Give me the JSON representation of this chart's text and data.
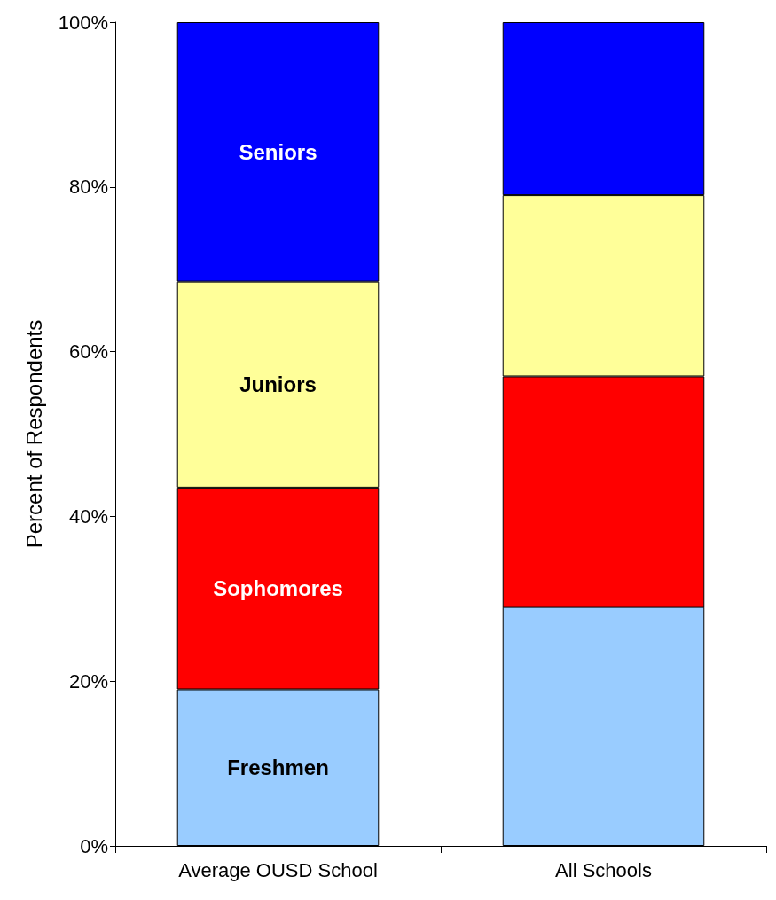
{
  "chart_data": {
    "type": "bar",
    "stacked": true,
    "ylabel": "Percent of Respondents",
    "categories": [
      "Average OUSD School",
      "All Schools"
    ],
    "series": [
      {
        "name": "Freshmen",
        "color": "#99ccff",
        "values": [
          19,
          29
        ]
      },
      {
        "name": "Sophomores",
        "color": "#ff0000",
        "values": [
          24.5,
          28
        ]
      },
      {
        "name": "Juniors",
        "color": "#ffff99",
        "values": [
          25,
          22
        ]
      },
      {
        "name": "Seniors",
        "color": "#0000ff",
        "values": [
          31.5,
          21
        ]
      }
    ],
    "ylim": [
      0,
      100
    ],
    "yticks": [
      {
        "value": 0,
        "label": "0%"
      },
      {
        "value": 20,
        "label": "20%"
      },
      {
        "value": 40,
        "label": "40%"
      },
      {
        "value": 60,
        "label": "60%"
      },
      {
        "value": 80,
        "label": "80%"
      },
      {
        "value": 100,
        "label": "100%"
      }
    ],
    "grid": false,
    "legend": false
  }
}
